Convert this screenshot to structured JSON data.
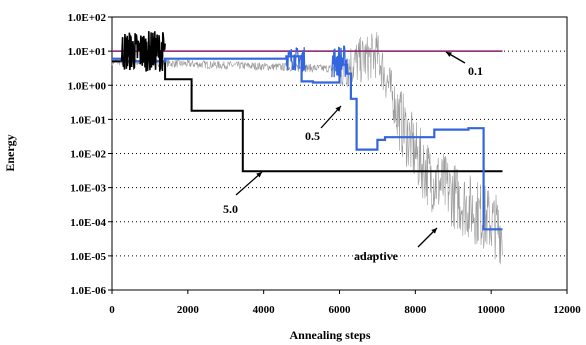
{
  "chart_data": {
    "type": "line",
    "xlabel": "Annealing steps",
    "ylabel": "Energy",
    "xlim": [
      0,
      12000
    ],
    "ylim": [
      1e-06,
      100
    ],
    "yscale": "log",
    "x_ticks": [
      "0",
      "2000",
      "4000",
      "6000",
      "8000",
      "10000",
      "12000"
    ],
    "y_ticks": [
      "1.0E-06",
      "1.0E-05",
      "1.0E-04",
      "1.0E-03",
      "1.0E-02",
      "1.0E-01",
      "1.0E+00",
      "1.0E+01",
      "1.0E+02"
    ],
    "grid": "horizontal dotted",
    "series": [
      {
        "name": "0.1",
        "color": "#8b1a6b",
        "x": [
          0,
          1400,
          2000,
          4000,
          6000,
          8000,
          10000,
          10300
        ],
        "y": [
          10,
          10,
          10,
          10,
          10,
          10,
          10,
          10
        ]
      },
      {
        "name": "0.5",
        "color": "#3366dd",
        "x": [
          0,
          250,
          250,
          1400,
          1400,
          4600,
          4600,
          5000,
          5000,
          5300,
          5300,
          6000,
          6000,
          6200,
          6200,
          6300,
          6300,
          6450,
          6450,
          7000,
          7000,
          7200,
          7200,
          8500,
          8500,
          9400,
          9400,
          9800,
          9800,
          9900,
          9900,
          10300
        ],
        "y": [
          6,
          6,
          5,
          5,
          6,
          6,
          7,
          7,
          1.3,
          1.3,
          1.2,
          1.2,
          4,
          4,
          2.2,
          2.2,
          0.4,
          0.4,
          0.013,
          0.013,
          0.025,
          0.025,
          0.03,
          0.03,
          0.05,
          0.05,
          0.055,
          0.055,
          6e-05,
          6e-05,
          6e-05,
          6e-05
        ]
      },
      {
        "name": "5.0",
        "color": "#000000",
        "x": [
          0,
          1400,
          1400,
          2100,
          2100,
          3400,
          3400,
          3450,
          3450,
          10300
        ],
        "y": [
          5,
          5,
          1.5,
          1.5,
          0.18,
          0.18,
          0.18,
          0.18,
          0.003,
          0.003
        ]
      },
      {
        "name": "adaptive",
        "color": "#9a9a9a",
        "x": [
          0,
          6000,
          6500,
          7000,
          7300,
          7600,
          8000,
          8400,
          8800,
          9200,
          9600,
          10000,
          10300
        ],
        "y": [
          5,
          3,
          5,
          8,
          1,
          0.1,
          0.01,
          0.002,
          0.001,
          0.0004,
          0.0002,
          0.0001,
          5e-05
        ]
      }
    ],
    "annotations": [
      "0.1",
      "0.5",
      "5.0",
      "adaptive"
    ]
  }
}
